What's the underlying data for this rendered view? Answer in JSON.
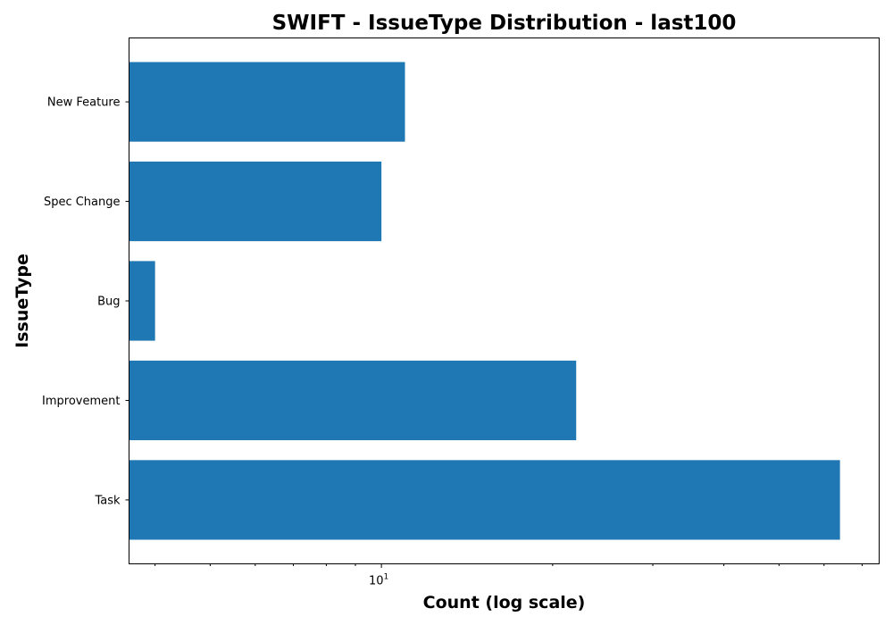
{
  "chart_data": {
    "type": "bar",
    "orientation": "horizontal",
    "title": "SWIFT - IssueType Distribution - last100",
    "xlabel": "Count (log scale)",
    "ylabel": "IssueType",
    "xscale": "log",
    "xlim": [
      3.6,
      75
    ],
    "x_tick_labels": [
      {
        "value": 10,
        "base": "10",
        "exponent": "1"
      }
    ],
    "x_minor_ticks": [
      4,
      5,
      6,
      7,
      8,
      9,
      20,
      30,
      40,
      50,
      60,
      70
    ],
    "categories": [
      "Task",
      "Improvement",
      "Bug",
      "Spec Change",
      "New Feature"
    ],
    "values": [
      64,
      22,
      4,
      10,
      11
    ],
    "grid": false,
    "bar_color": "#1f77b4"
  }
}
